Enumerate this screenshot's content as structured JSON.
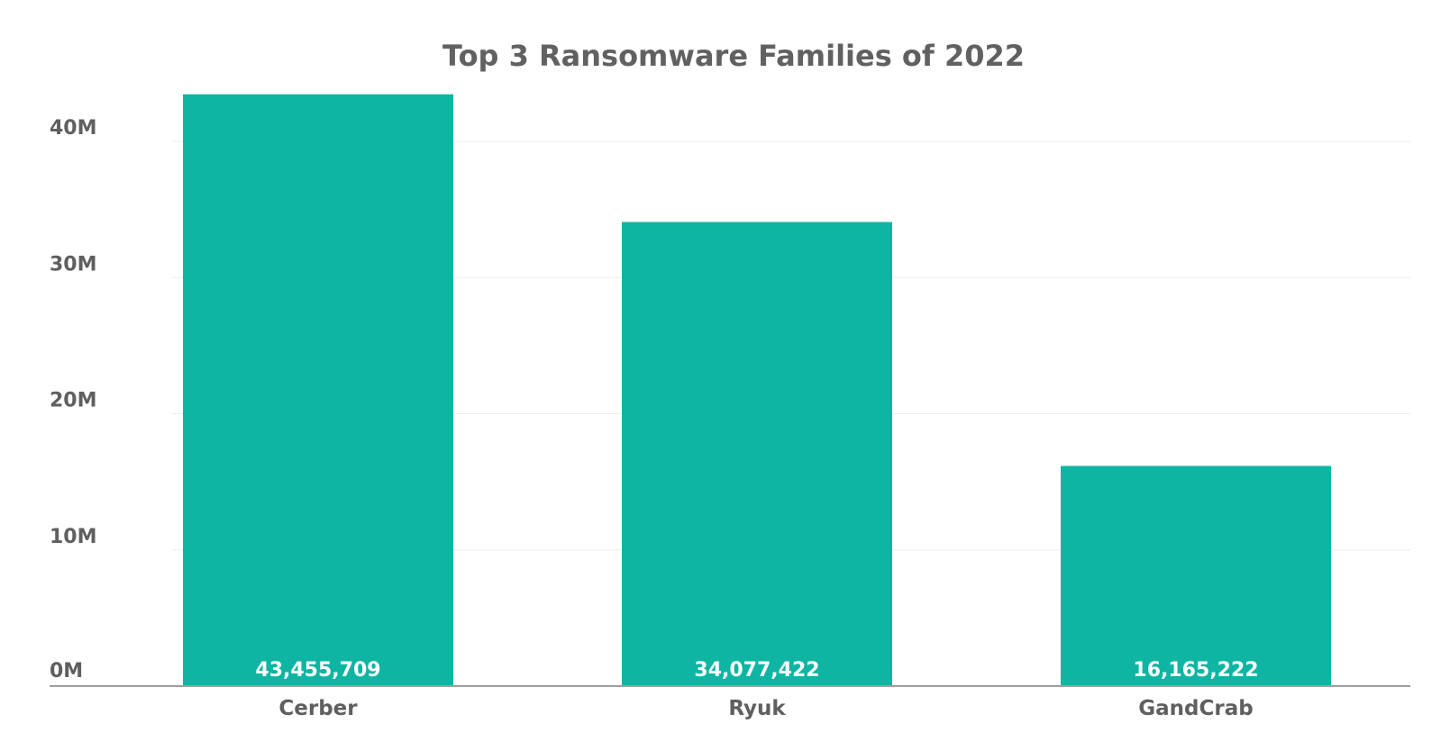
{
  "chart_data": {
    "type": "bar",
    "title": "Top 3 Ransomware Families of 2022",
    "xlabel": "",
    "ylabel": "",
    "categories": [
      "Cerber",
      "Ryuk",
      "GandCrab"
    ],
    "values": [
      43455709,
      34077422,
      16165222
    ],
    "data_labels": [
      "43,455,709",
      "34,077,422",
      "16,165,222"
    ],
    "yticks": [
      0,
      10000000,
      20000000,
      30000000,
      40000000
    ],
    "ytick_labels": [
      "0M",
      "10M",
      "20M",
      "30M",
      "40M"
    ],
    "ylim": [
      0,
      40000000
    ],
    "grid": true,
    "legend": "none",
    "colors": {
      "bar": "#0fb5a3",
      "gridline": "#eeeeee",
      "axis": "#9e9e9e",
      "text": "#5f5f5f"
    }
  }
}
